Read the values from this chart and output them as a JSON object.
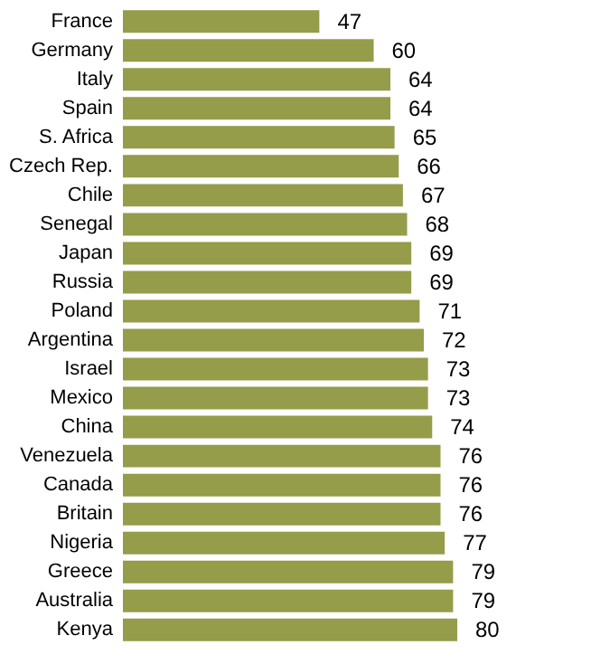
{
  "chart_data": {
    "type": "bar",
    "orientation": "horizontal",
    "categories": [
      "France",
      "Germany",
      "Italy",
      "Spain",
      "S. Africa",
      "Czech Rep.",
      "Chile",
      "Senegal",
      "Japan",
      "Russia",
      "Poland",
      "Argentina",
      "Israel",
      "Mexico",
      "China",
      "Venezuela",
      "Canada",
      "Britain",
      "Nigeria",
      "Greece",
      "Australia",
      "Kenya"
    ],
    "values": [
      47,
      60,
      64,
      64,
      65,
      66,
      67,
      68,
      69,
      69,
      71,
      72,
      73,
      73,
      74,
      76,
      76,
      76,
      77,
      79,
      79,
      80
    ],
    "color": "#959c4a",
    "data_labels": true
  }
}
